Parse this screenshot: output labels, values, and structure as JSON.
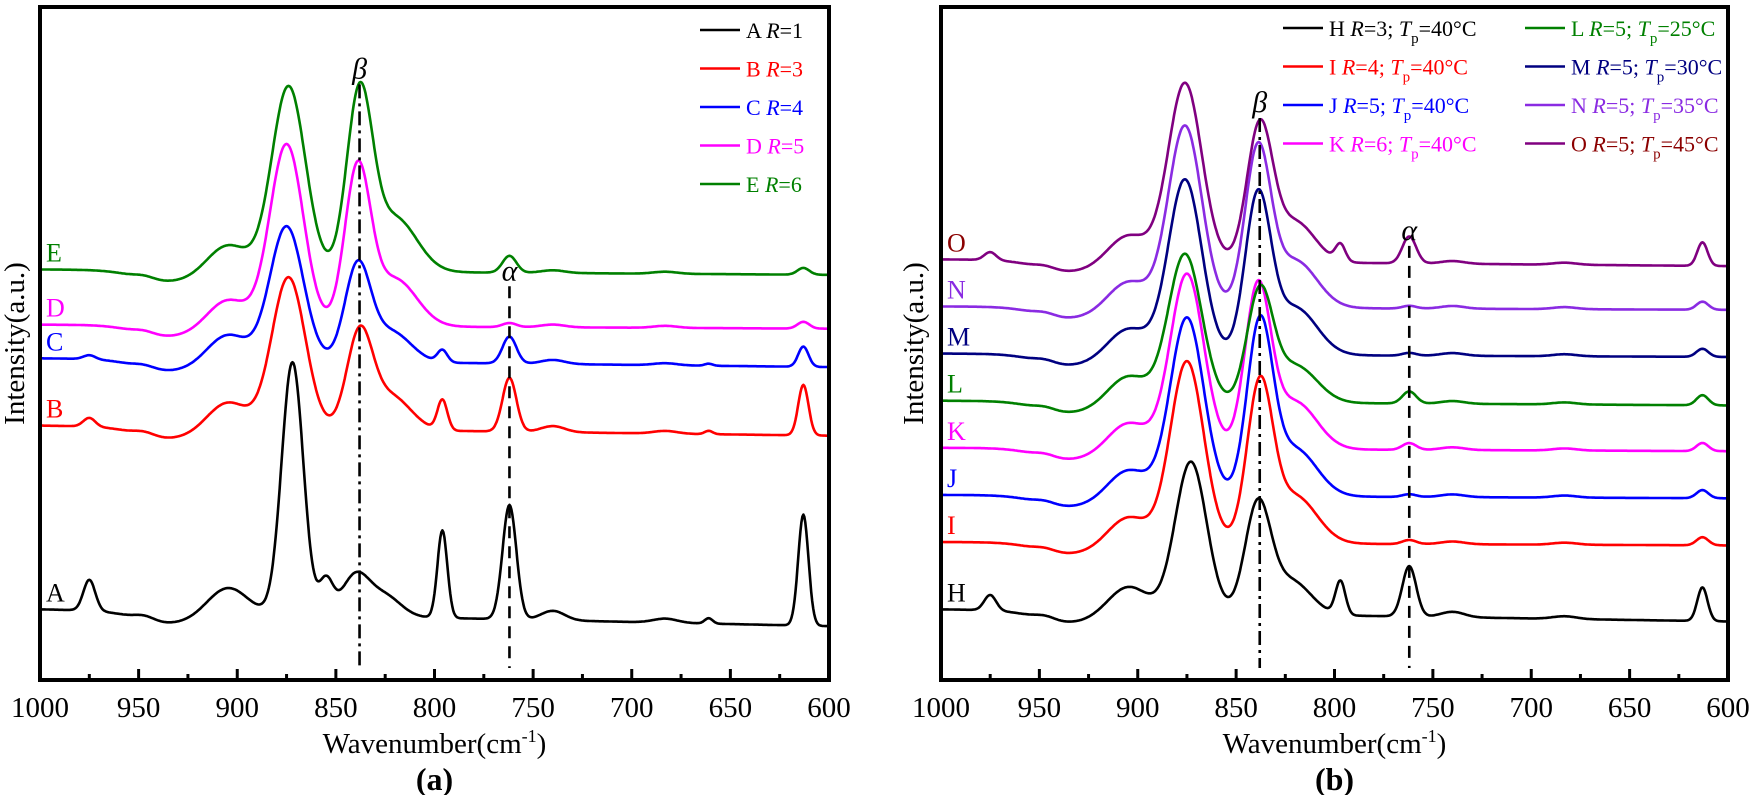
{
  "chart_data": [
    {
      "type": "line",
      "panel_label": "(a)",
      "xlabel": "Wavenumber(cm",
      "xlabel_sup": "-1",
      "xlabel_close": ")",
      "ylabel": "Intensity(a.u.)",
      "xlim": [
        1000,
        600
      ],
      "x_reversed": true,
      "ylim": [
        0,
        100
      ],
      "xticks": [
        1000,
        950,
        900,
        850,
        800,
        750,
        700,
        650,
        600
      ],
      "minor_xticks": [
        975,
        925,
        875,
        825,
        775,
        725,
        675,
        625
      ],
      "grid": false,
      "legend_position": "top-right",
      "annotations": [
        {
          "text": "β",
          "x": 838,
          "style": "dash-dot",
          "y_top": 88.5
        },
        {
          "text": "α",
          "x": 762,
          "style": "dashed",
          "y_top": 58.5
        }
      ],
      "series": [
        {
          "id": "A",
          "name": "A",
          "param": "R=1",
          "color": "#000000",
          "baseline": 10.5,
          "tilt": -2.5,
          "peaks": [
            [
              975,
              4.6,
              3
            ],
            [
              947,
              0.6,
              5
            ],
            [
              905,
              4,
              10
            ],
            [
              872,
              37.5,
              5.5
            ],
            [
              855,
              5,
              3.5
            ],
            [
              840,
              6,
              7
            ],
            [
              825,
              3,
              8
            ],
            [
              796,
              13,
              2.5
            ],
            [
              762,
              17,
              3.5
            ],
            [
              740,
              1.4,
              6
            ],
            [
              683,
              0.6,
              6
            ],
            [
              661,
              0.8,
              2
            ],
            [
              613,
              16.5,
              2.6
            ]
          ]
        },
        {
          "id": "B",
          "name": "B",
          "param": "R=3",
          "color": "#ff0000",
          "baseline": 37.8,
          "tilt": -1.5,
          "peaks": [
            [
              975,
              1.3,
              3
            ],
            [
              947,
              0.5,
              5
            ],
            [
              905,
              4,
              10
            ],
            [
              874,
              22.5,
              8.5
            ],
            [
              838,
              14,
              6.5
            ],
            [
              822,
              5,
              10
            ],
            [
              796,
              4.5,
              2.5
            ],
            [
              762,
              8,
              3.5
            ],
            [
              740,
              0.9,
              6
            ],
            [
              683,
              0.4,
              6
            ],
            [
              661,
              0.5,
              2
            ],
            [
              613,
              7.5,
              2.6
            ]
          ]
        },
        {
          "id": "C",
          "name": "C",
          "param": "R=4",
          "color": "#0000ff",
          "baseline": 47.8,
          "tilt": -1.3,
          "peaks": [
            [
              975,
              0.6,
              3
            ],
            [
              947,
              0.4,
              5
            ],
            [
              905,
              4,
              10
            ],
            [
              875,
              20,
              8.5
            ],
            [
              839,
              14,
              6.5
            ],
            [
              822,
              4.5,
              10
            ],
            [
              796,
              1.8,
              2.5
            ],
            [
              762,
              4,
              3.5
            ],
            [
              740,
              0.6,
              6
            ],
            [
              683,
              0.3,
              6
            ],
            [
              661,
              0.3,
              2
            ],
            [
              613,
              3,
              2.6
            ]
          ]
        },
        {
          "id": "D",
          "name": "D",
          "param": "R=5",
          "color": "#ff00ff",
          "baseline": 52.8,
          "tilt": -0.6,
          "peaks": [
            [
              947,
              0.4,
              5
            ],
            [
              905,
              4,
              10
            ],
            [
              875,
              27,
              8.5
            ],
            [
              839,
              23,
              6.5
            ],
            [
              820,
              7,
              11
            ],
            [
              762,
              0.6,
              3.5
            ],
            [
              740,
              0.4,
              6
            ],
            [
              683,
              0.3,
              6
            ],
            [
              613,
              1,
              3
            ]
          ]
        },
        {
          "id": "E",
          "name": "E",
          "param": "R=6",
          "color": "#008000",
          "baseline": 61,
          "tilt": -0.8,
          "peaks": [
            [
              947,
              0.4,
              5
            ],
            [
              905,
              4,
              10
            ],
            [
              874,
              27.5,
              8.5
            ],
            [
              838,
              26,
              6.5
            ],
            [
              820,
              8,
              11
            ],
            [
              762,
              2.5,
              3.5
            ],
            [
              740,
              0.4,
              6
            ],
            [
              683,
              0.3,
              6
            ],
            [
              613,
              1,
              3
            ]
          ]
        }
      ]
    },
    {
      "type": "line",
      "panel_label": "(b)",
      "xlabel": "Wavenumber(cm",
      "xlabel_sup": "-1",
      "xlabel_close": ")",
      "ylabel": "Intensity(a.u.)",
      "xlim": [
        1000,
        600
      ],
      "x_reversed": true,
      "ylim": [
        0,
        100
      ],
      "xticks": [
        1000,
        950,
        900,
        850,
        800,
        750,
        700,
        650,
        600
      ],
      "minor_xticks": [
        975,
        925,
        875,
        825,
        775,
        725,
        675,
        625
      ],
      "grid": false,
      "legend_position": "top-right",
      "annotations": [
        {
          "text": "β",
          "x": 838,
          "style": "dash-dot",
          "y_top": 83.5
        },
        {
          "text": "α",
          "x": 762,
          "style": "dashed",
          "y_top": 64.5
        }
      ],
      "series": [
        {
          "id": "H",
          "name": "H",
          "param_R": "R=3",
          "param_T": "=40°C",
          "color": "#000000",
          "baseline": 10.5,
          "tilt": -1.8,
          "peaks": [
            [
              975,
              2.3,
              3
            ],
            [
              947,
              0.5,
              5
            ],
            [
              905,
              4,
              10
            ],
            [
              873,
              22.5,
              8
            ],
            [
              839,
              16,
              6.5
            ],
            [
              822,
              5,
              10
            ],
            [
              797,
              5,
              2.5
            ],
            [
              762,
              7.5,
              3.5
            ],
            [
              740,
              0.8,
              6
            ],
            [
              683,
              0.4,
              6
            ],
            [
              613,
              5,
              2.6
            ]
          ]
        },
        {
          "id": "I",
          "name": "I",
          "param_R": "R=4",
          "param_T": "=40°C",
          "color": "#ff0000",
          "baseline": 20.5,
          "tilt": -0.5,
          "peaks": [
            [
              947,
              0.4,
              5
            ],
            [
              905,
              4,
              10
            ],
            [
              875,
              27,
              8.5
            ],
            [
              838,
              23,
              6.5
            ],
            [
              820,
              7,
              11
            ],
            [
              762,
              0.6,
              3.5
            ],
            [
              740,
              0.4,
              6
            ],
            [
              683,
              0.3,
              6
            ],
            [
              613,
              1.2,
              3
            ]
          ]
        },
        {
          "id": "J",
          "name": "J",
          "param_R": "R=5",
          "param_T": "=40°C",
          "color": "#0000ff",
          "baseline": 27.5,
          "tilt": -0.5,
          "peaks": [
            [
              947,
              0.4,
              5
            ],
            [
              905,
              4,
              10
            ],
            [
              875,
              26.5,
              8.5
            ],
            [
              838,
              25,
              6.5
            ],
            [
              820,
              7,
              11
            ],
            [
              762,
              0.4,
              3.5
            ],
            [
              740,
              0.4,
              6
            ],
            [
              683,
              0.3,
              6
            ],
            [
              613,
              1.2,
              3
            ]
          ]
        },
        {
          "id": "K",
          "name": "K",
          "param_R": "R=6",
          "param_T": "=40°C",
          "color": "#ff00ff",
          "baseline": 34.5,
          "tilt": -0.5,
          "peaks": [
            [
              947,
              0.4,
              5
            ],
            [
              905,
              4,
              10
            ],
            [
              875,
              26,
              8.5
            ],
            [
              839,
              23.5,
              6.5
            ],
            [
              820,
              7,
              11
            ],
            [
              762,
              1,
              3.5
            ],
            [
              740,
              0.4,
              6
            ],
            [
              683,
              0.3,
              6
            ],
            [
              613,
              1.2,
              3
            ]
          ]
        },
        {
          "id": "L",
          "name": "L",
          "param_R": "R=5",
          "param_T": "=25°C",
          "color": "#008000",
          "baseline": 41.5,
          "tilt": -0.7,
          "peaks": [
            [
              947,
              0.4,
              5
            ],
            [
              905,
              4,
              10
            ],
            [
              876,
              22,
              8.5
            ],
            [
              838,
              16,
              6.5
            ],
            [
              820,
              5.5,
              11
            ],
            [
              762,
              1.8,
              3.5
            ],
            [
              740,
              0.4,
              6
            ],
            [
              683,
              0.3,
              6
            ],
            [
              613,
              1.5,
              3
            ]
          ]
        },
        {
          "id": "M",
          "name": "M",
          "param_R": "R=5",
          "param_T": "=30°C",
          "color": "#000080",
          "baseline": 48.5,
          "tilt": -0.5,
          "peaks": [
            [
              947,
              0.4,
              5
            ],
            [
              905,
              4,
              10
            ],
            [
              876,
              26,
              8.5
            ],
            [
              839,
              23,
              6.5
            ],
            [
              820,
              7,
              11
            ],
            [
              762,
              0.4,
              3.5
            ],
            [
              740,
              0.4,
              6
            ],
            [
              683,
              0.3,
              6
            ],
            [
              613,
              1.2,
              3
            ]
          ]
        },
        {
          "id": "N",
          "name": "N",
          "param_R": "R=5",
          "param_T": "=35°C",
          "color": "#8a2be2",
          "baseline": 55.5,
          "tilt": -0.5,
          "peaks": [
            [
              947,
              0.4,
              5
            ],
            [
              905,
              4,
              10
            ],
            [
              876,
              27,
              8.5
            ],
            [
              839,
              23,
              6.5
            ],
            [
              820,
              7,
              11
            ],
            [
              762,
              0.4,
              3.5
            ],
            [
              740,
              0.4,
              6
            ],
            [
              683,
              0.3,
              6
            ],
            [
              613,
              1.2,
              3
            ]
          ]
        },
        {
          "id": "O",
          "name": "O",
          "param_R": "R=5",
          "param_T": "=45°C",
          "color": "#800080",
          "label_color": "#8b0000",
          "baseline": 62.5,
          "tilt": -1.0,
          "peaks": [
            [
              975,
              1.2,
              3
            ],
            [
              947,
              0.4,
              5
            ],
            [
              905,
              4,
              10
            ],
            [
              876,
              26.5,
              8.5
            ],
            [
              838,
              20,
              6.5
            ],
            [
              820,
              6,
              10
            ],
            [
              797,
              2.5,
              2.5
            ],
            [
              762,
              4,
              3.5
            ],
            [
              740,
              0.4,
              6
            ],
            [
              683,
              0.3,
              6
            ],
            [
              613,
              3.5,
              2.6
            ]
          ]
        }
      ]
    }
  ]
}
